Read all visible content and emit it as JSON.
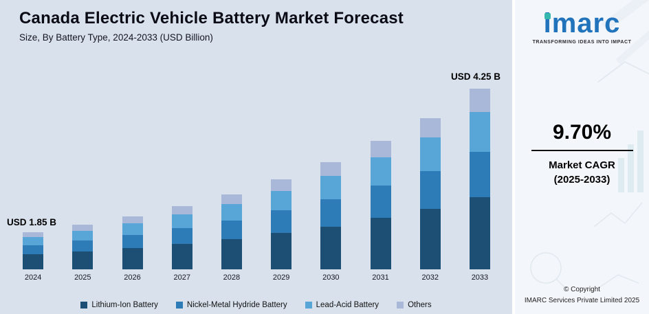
{
  "header": {
    "title": "Canada Electric Vehicle Battery Market Forecast",
    "subtitle": "Size, By Battery Type, 2024-2033 (USD Billion)"
  },
  "chart_data": {
    "type": "bar",
    "stacked": true,
    "title": "Canada Electric Vehicle Battery Market Forecast",
    "subtitle": "Size, By Battery Type, 2024-2033 (USD Billion)",
    "unit": "USD Billion",
    "xlabel": "",
    "ylabel": "",
    "grid": false,
    "legend_position": "bottom",
    "categories": [
      "2024",
      "2025",
      "2026",
      "2027",
      "2028",
      "2029",
      "2030",
      "2031",
      "2032",
      "2033"
    ],
    "totals": [
      1.85,
      2.03,
      2.22,
      2.44,
      2.68,
      2.94,
      3.22,
      3.54,
      3.88,
      4.25
    ],
    "series": [
      {
        "name": "Lithium-Ion Battery",
        "color": "#1d4e73",
        "values": [
          0.74,
          0.81,
          0.89,
          0.98,
          1.07,
          1.18,
          1.29,
          1.42,
          1.55,
          1.7
        ]
      },
      {
        "name": "Nickel-Metal Hydride Battery",
        "color": "#2d7cb8",
        "values": [
          0.46,
          0.51,
          0.56,
          0.61,
          0.67,
          0.74,
          0.81,
          0.89,
          0.97,
          1.06
        ]
      },
      {
        "name": "Lead-Acid Battery",
        "color": "#58a5d8",
        "values": [
          0.41,
          0.45,
          0.49,
          0.54,
          0.59,
          0.65,
          0.71,
          0.78,
          0.85,
          0.94
        ]
      },
      {
        "name": "Others",
        "color": "#a9b7d9",
        "values": [
          0.24,
          0.26,
          0.29,
          0.32,
          0.35,
          0.38,
          0.42,
          0.46,
          0.5,
          0.55
        ]
      }
    ],
    "labels": {
      "start": "USD 1.85 B",
      "end": "USD 4.25 B"
    }
  },
  "brand": {
    "logo_text": "imarc",
    "tagline": "TRANSFORMING IDEAS INTO IMPACT",
    "blue": "#2173bb",
    "teal": "#35b8ae",
    "cagr_value": "9.70%",
    "cagr_label_line1": "Market CAGR",
    "cagr_label_line2": "(2025-2033)",
    "copyright_line1": "© Copyright",
    "copyright_line2": "IMARC Services Private Limited 2025"
  },
  "colors": {
    "chart_background": "#d9e1ec",
    "panel_background": "#f3f6fa",
    "title_text": "#0b0b16"
  }
}
